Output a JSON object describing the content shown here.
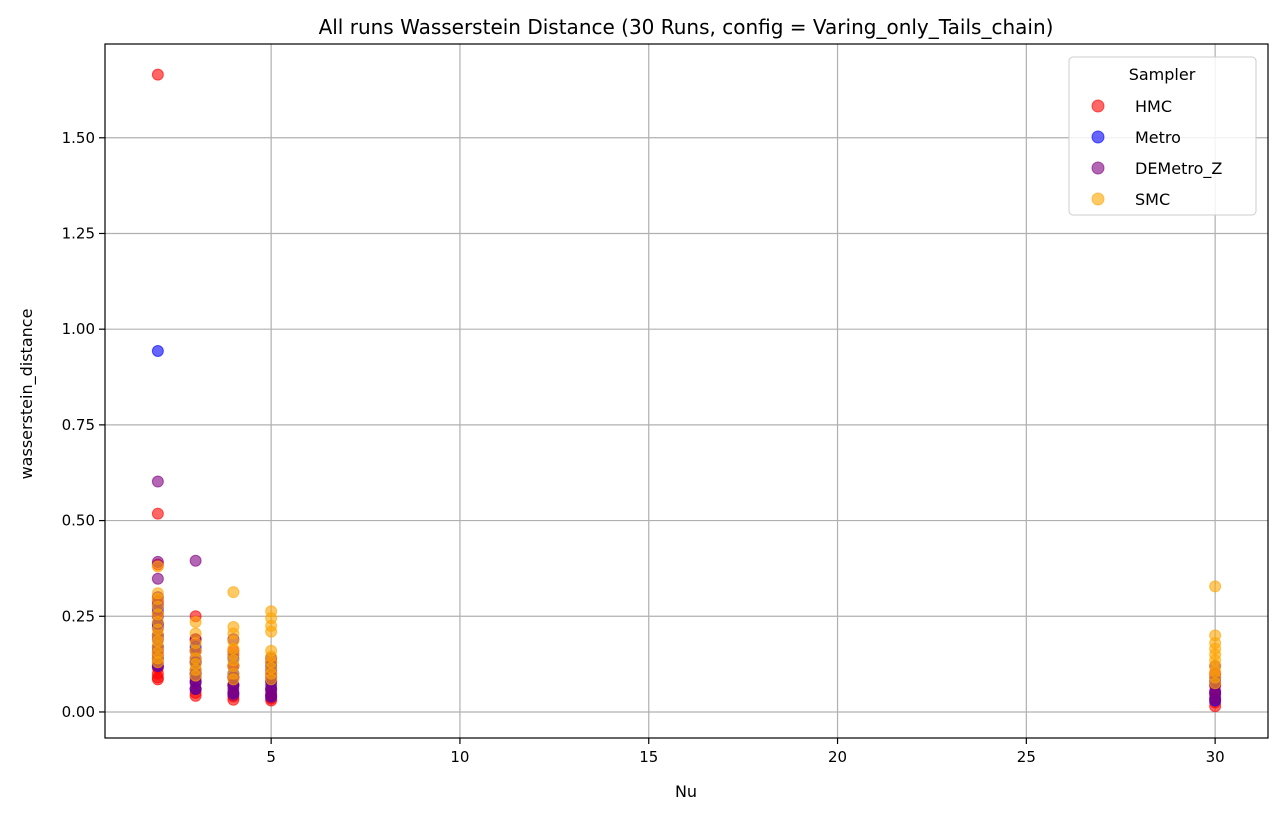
{
  "chart_data": {
    "type": "scatter",
    "title": "All runs Wasserstein Distance (30 Runs, config = Varing_only_Tails_chain)",
    "xlabel": "Nu",
    "ylabel": "wasserstein_distance",
    "xlim": [
      0.6,
      31.4
    ],
    "ylim": [
      -0.068,
      1.745
    ],
    "x_ticks": [
      5,
      10,
      15,
      20,
      25,
      30
    ],
    "x_tick_labels": [
      "5",
      "10",
      "15",
      "20",
      "25",
      "30"
    ],
    "y_ticks": [
      0.0,
      0.25,
      0.5,
      0.75,
      1.0,
      1.25,
      1.5
    ],
    "y_tick_labels": [
      "0.00",
      "0.25",
      "0.50",
      "0.75",
      "1.00",
      "1.25",
      "1.50"
    ],
    "grid": true,
    "legend": {
      "title": "Sampler",
      "placement": "top-right"
    },
    "series": [
      {
        "name": "HMC",
        "color": "#ff0000",
        "points": [
          [
            2,
            1.665
          ],
          [
            2,
            0.518
          ],
          [
            2,
            0.385
          ],
          [
            2,
            0.29
          ],
          [
            2,
            0.26
          ],
          [
            2,
            0.23
          ],
          [
            2,
            0.2
          ],
          [
            2,
            0.17
          ],
          [
            2,
            0.15
          ],
          [
            2,
            0.13
          ],
          [
            2,
            0.115
          ],
          [
            2,
            0.1
          ],
          [
            2,
            0.09
          ],
          [
            2,
            0.085
          ],
          [
            3,
            0.25
          ],
          [
            3,
            0.19
          ],
          [
            3,
            0.16
          ],
          [
            3,
            0.13
          ],
          [
            3,
            0.1
          ],
          [
            3,
            0.08
          ],
          [
            3,
            0.06
          ],
          [
            3,
            0.05
          ],
          [
            3,
            0.042
          ],
          [
            4,
            0.16
          ],
          [
            4,
            0.12
          ],
          [
            4,
            0.09
          ],
          [
            4,
            0.07
          ],
          [
            4,
            0.05
          ],
          [
            4,
            0.04
          ],
          [
            4,
            0.032
          ],
          [
            5,
            0.13
          ],
          [
            5,
            0.1
          ],
          [
            5,
            0.08
          ],
          [
            5,
            0.06
          ],
          [
            5,
            0.045
          ],
          [
            5,
            0.035
          ],
          [
            5,
            0.03
          ],
          [
            30,
            0.1
          ],
          [
            30,
            0.07
          ],
          [
            30,
            0.05
          ],
          [
            30,
            0.035
          ],
          [
            30,
            0.025
          ],
          [
            30,
            0.015
          ]
        ]
      },
      {
        "name": "Metro",
        "color": "#0000ff",
        "points": [
          [
            2,
            0.943
          ],
          [
            2,
            0.27
          ],
          [
            2,
            0.23
          ],
          [
            2,
            0.2
          ],
          [
            2,
            0.17
          ],
          [
            2,
            0.14
          ],
          [
            2,
            0.12
          ],
          [
            3,
            0.17
          ],
          [
            3,
            0.13
          ],
          [
            3,
            0.1
          ],
          [
            3,
            0.08
          ],
          [
            3,
            0.06
          ],
          [
            4,
            0.14
          ],
          [
            4,
            0.1
          ],
          [
            4,
            0.07
          ],
          [
            4,
            0.05
          ],
          [
            5,
            0.12
          ],
          [
            5,
            0.08
          ],
          [
            5,
            0.06
          ],
          [
            5,
            0.04
          ],
          [
            30,
            0.08
          ],
          [
            30,
            0.05
          ],
          [
            30,
            0.03
          ]
        ]
      },
      {
        "name": "DEMetro_Z",
        "color": "#800080",
        "points": [
          [
            2,
            0.602
          ],
          [
            2,
            0.392
          ],
          [
            2,
            0.348
          ],
          [
            2,
            0.3
          ],
          [
            2,
            0.28
          ],
          [
            2,
            0.25
          ],
          [
            2,
            0.22
          ],
          [
            2,
            0.19
          ],
          [
            2,
            0.16
          ],
          [
            2,
            0.14
          ],
          [
            2,
            0.12
          ],
          [
            3,
            0.395
          ],
          [
            3,
            0.19
          ],
          [
            3,
            0.16
          ],
          [
            3,
            0.14
          ],
          [
            3,
            0.11
          ],
          [
            3,
            0.09
          ],
          [
            3,
            0.075
          ],
          [
            3,
            0.06
          ],
          [
            4,
            0.19
          ],
          [
            4,
            0.15
          ],
          [
            4,
            0.12
          ],
          [
            4,
            0.09
          ],
          [
            4,
            0.07
          ],
          [
            4,
            0.06
          ],
          [
            4,
            0.045
          ],
          [
            5,
            0.14
          ],
          [
            5,
            0.11
          ],
          [
            5,
            0.09
          ],
          [
            5,
            0.07
          ],
          [
            5,
            0.055
          ],
          [
            5,
            0.045
          ],
          [
            5,
            0.04
          ],
          [
            30,
            0.12
          ],
          [
            30,
            0.09
          ],
          [
            30,
            0.07
          ],
          [
            30,
            0.055
          ],
          [
            30,
            0.045
          ],
          [
            30,
            0.035
          ]
        ]
      },
      {
        "name": "SMC",
        "color": "#ffa500",
        "points": [
          [
            2,
            0.38
          ],
          [
            2,
            0.31
          ],
          [
            2,
            0.295
          ],
          [
            2,
            0.275
          ],
          [
            2,
            0.255
          ],
          [
            2,
            0.235
          ],
          [
            2,
            0.215
          ],
          [
            2,
            0.2
          ],
          [
            2,
            0.185
          ],
          [
            2,
            0.17
          ],
          [
            2,
            0.155
          ],
          [
            2,
            0.14
          ],
          [
            2,
            0.13
          ],
          [
            3,
            0.235
          ],
          [
            3,
            0.205
          ],
          [
            3,
            0.18
          ],
          [
            3,
            0.16
          ],
          [
            3,
            0.14
          ],
          [
            3,
            0.125
          ],
          [
            3,
            0.11
          ],
          [
            3,
            0.095
          ],
          [
            4,
            0.313
          ],
          [
            4,
            0.222
          ],
          [
            4,
            0.205
          ],
          [
            4,
            0.185
          ],
          [
            4,
            0.165
          ],
          [
            4,
            0.15
          ],
          [
            4,
            0.135
          ],
          [
            4,
            0.12
          ],
          [
            4,
            0.1
          ],
          [
            4,
            0.085
          ],
          [
            5,
            0.263
          ],
          [
            5,
            0.245
          ],
          [
            5,
            0.225
          ],
          [
            5,
            0.21
          ],
          [
            5,
            0.16
          ],
          [
            5,
            0.145
          ],
          [
            5,
            0.13
          ],
          [
            5,
            0.115
          ],
          [
            5,
            0.1
          ],
          [
            5,
            0.085
          ],
          [
            30,
            0.328
          ],
          [
            30,
            0.2
          ],
          [
            30,
            0.18
          ],
          [
            30,
            0.165
          ],
          [
            30,
            0.15
          ],
          [
            30,
            0.135
          ],
          [
            30,
            0.12
          ],
          [
            30,
            0.105
          ],
          [
            30,
            0.09
          ],
          [
            30,
            0.075
          ]
        ]
      }
    ]
  }
}
